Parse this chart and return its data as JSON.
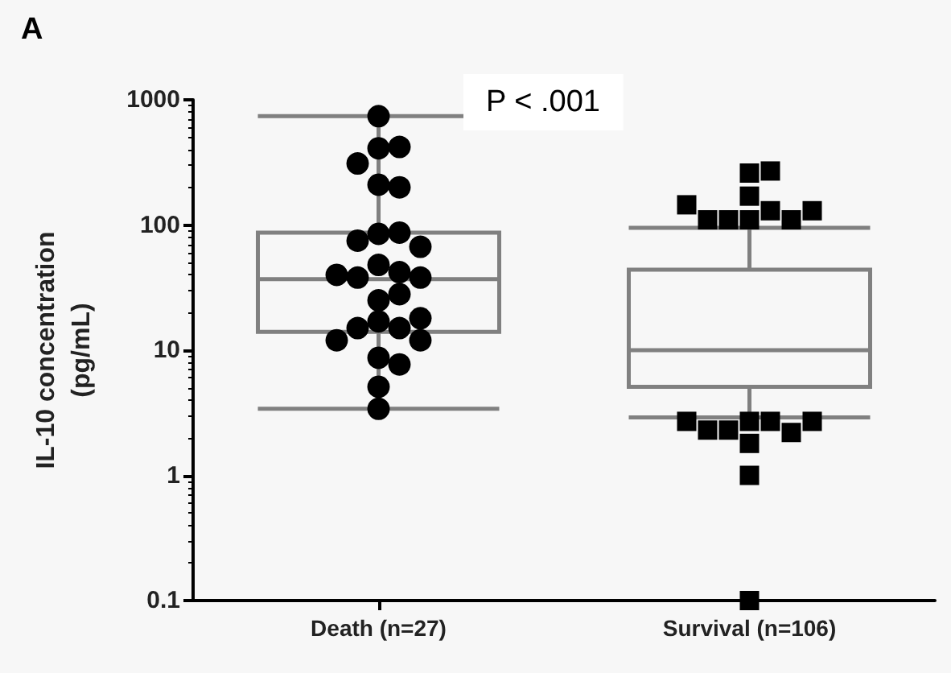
{
  "chart_data": {
    "type": "box",
    "title": "A",
    "ylabel": "IL-10 concentration\n(pg/mL)",
    "annotations": [
      "P < .001"
    ],
    "categories": [
      "Death (n=27)",
      "Survival (n=106)"
    ],
    "log": true,
    "ylim": [
      0.1,
      1000
    ],
    "yticks": [
      0.1,
      1,
      10,
      100,
      1000
    ],
    "grid": false,
    "series": [
      {
        "color": "#808080",
        "boxes": [
          {
            "low": 3.4,
            "q1": 14,
            "median": 37,
            "q3": 87,
            "high": 740
          },
          {
            "low": 2.9,
            "q1": 5.1,
            "median": 10,
            "q3": 44,
            "high": 95
          }
        ]
      },
      {
        "type": "scatter",
        "color": "#000000",
        "marker": "circle",
        "x": [
          "Death (n=27)",
          "Death (n=27)",
          "Death (n=27)",
          "Death (n=27)",
          "Death (n=27)",
          "Death (n=27)",
          "Death (n=27)",
          "Death (n=27)",
          "Death (n=27)",
          "Death (n=27)",
          "Death (n=27)",
          "Death (n=27)",
          "Death (n=27)",
          "Death (n=27)",
          "Death (n=27)",
          "Death (n=27)",
          "Death (n=27)",
          "Death (n=27)",
          "Death (n=27)",
          "Death (n=27)",
          "Death (n=27)",
          "Death (n=27)",
          "Death (n=27)",
          "Death (n=27)",
          "Death (n=27)",
          "Death (n=27)",
          "Death (n=27)"
        ],
        "values": [
          740,
          410,
          420,
          310,
          210,
          200,
          85,
          87,
          75,
          67,
          48,
          42,
          38,
          38,
          40,
          25,
          28,
          17,
          15,
          15,
          18,
          12,
          12,
          8.7,
          7.7,
          5.1,
          3.4
        ]
      },
      {
        "type": "scatter",
        "color": "#000000",
        "marker": "square",
        "x": [
          "Survival (n=106)",
          "Survival (n=106)",
          "Survival (n=106)",
          "Survival (n=106)",
          "Survival (n=106)",
          "Survival (n=106)",
          "Survival (n=106)",
          "Survival (n=106)",
          "Survival (n=106)",
          "Survival (n=106)",
          "Survival (n=106)",
          "Survival (n=106)",
          "Survival (n=106)",
          "Survival (n=106)",
          "Survival (n=106)",
          "Survival (n=106)",
          "Survival (n=106)",
          "Survival (n=106)",
          "Survival (n=106)",
          "Survival (n=106)"
        ],
        "values": [
          260,
          270,
          170,
          130,
          110,
          110,
          110,
          110,
          130,
          145,
          2.7,
          2.7,
          2.3,
          1.8,
          2.2,
          2.3,
          2.7,
          2.7,
          1,
          0.1
        ]
      }
    ]
  }
}
